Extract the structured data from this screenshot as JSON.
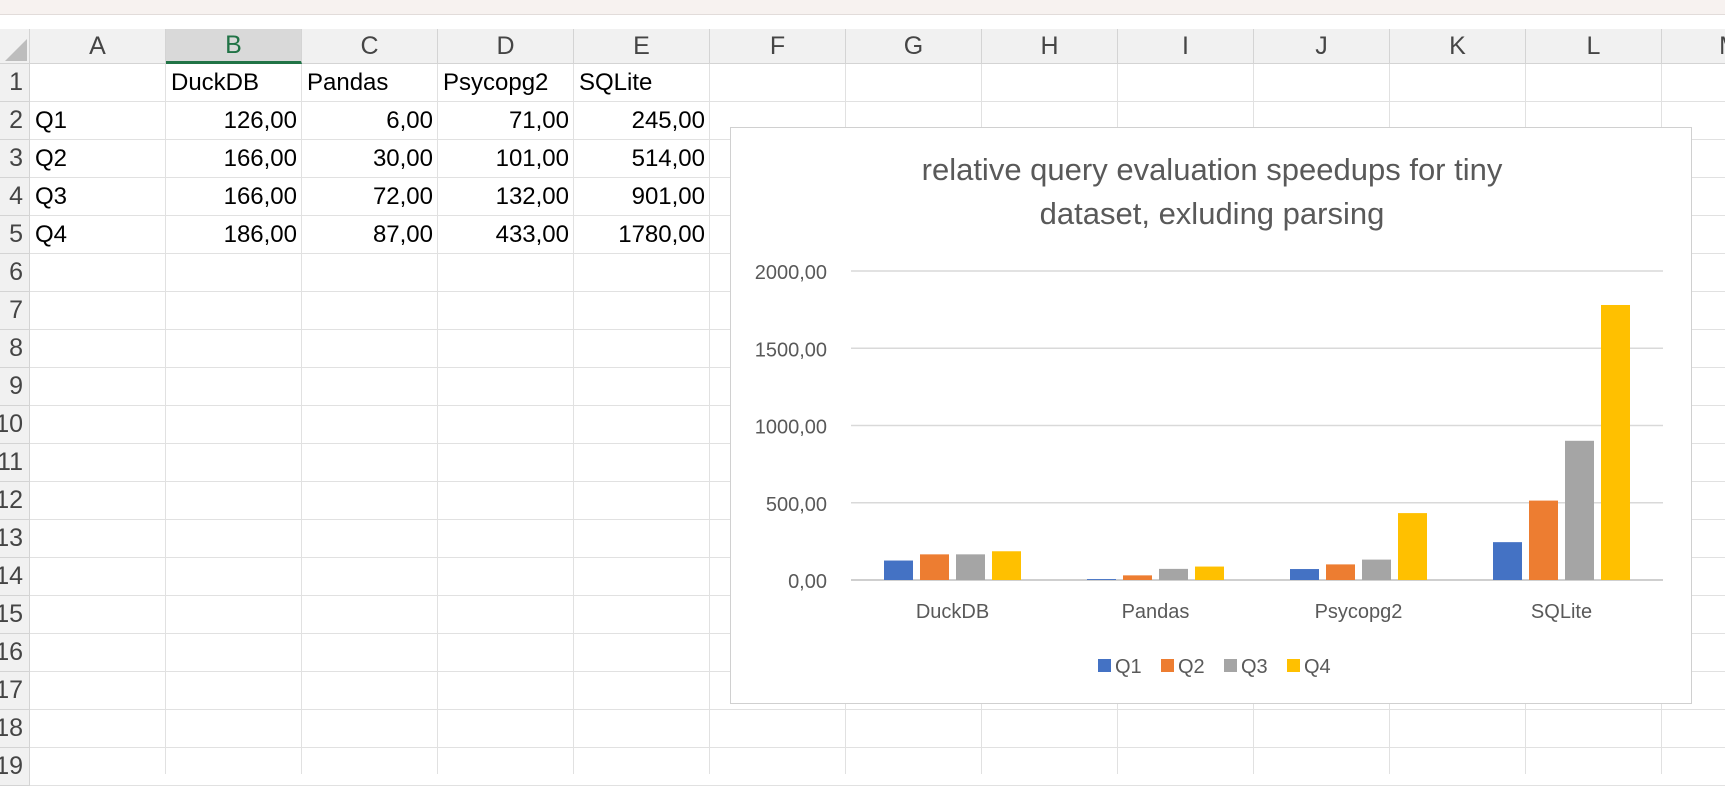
{
  "sheet": {
    "columns": [
      "A",
      "B",
      "C",
      "D",
      "E",
      "F",
      "G",
      "H",
      "I",
      "J",
      "K",
      "L",
      "M"
    ],
    "selected_column": "B",
    "rows": [
      "1",
      "2",
      "3",
      "4",
      "5",
      "6",
      "7",
      "8",
      "9",
      "10",
      "11",
      "12",
      "13",
      "14",
      "15",
      "16",
      "17",
      "18",
      "19"
    ],
    "header_row": [
      "",
      "DuckDB",
      "Pandas",
      "Psycopg2",
      "SQLite"
    ],
    "data_rows": [
      [
        "Q1",
        "126,00",
        "6,00",
        "71,00",
        "245,00"
      ],
      [
        "Q2",
        "166,00",
        "30,00",
        "101,00",
        "514,00"
      ],
      [
        "Q3",
        "166,00",
        "72,00",
        "132,00",
        "901,00"
      ],
      [
        "Q4",
        "186,00",
        "87,00",
        "433,00",
        "1780,00"
      ]
    ]
  },
  "chart_data": {
    "type": "bar",
    "title": "relative query evaluation speedups for tiny dataset, exluding parsing",
    "title_lines": [
      "relative query evaluation speedups for tiny",
      "dataset, exluding parsing"
    ],
    "categories": [
      "DuckDB",
      "Pandas",
      "Psycopg2",
      "SQLite"
    ],
    "series": [
      {
        "name": "Q1",
        "color": "#4472c4",
        "values": [
          126,
          6,
          71,
          245
        ]
      },
      {
        "name": "Q2",
        "color": "#ed7d31",
        "values": [
          166,
          30,
          101,
          514
        ]
      },
      {
        "name": "Q3",
        "color": "#a5a5a5",
        "values": [
          166,
          72,
          132,
          901
        ]
      },
      {
        "name": "Q4",
        "color": "#ffc000",
        "values": [
          186,
          87,
          433,
          1780
        ]
      }
    ],
    "ylim": [
      0,
      2000
    ],
    "yticks": [
      0,
      500,
      1000,
      1500,
      2000
    ],
    "ytick_labels": [
      "0,00",
      "500,00",
      "1000,00",
      "1500,00",
      "2000,00"
    ],
    "xlabel": "",
    "ylabel": "",
    "grid": true,
    "legend_position": "bottom"
  }
}
